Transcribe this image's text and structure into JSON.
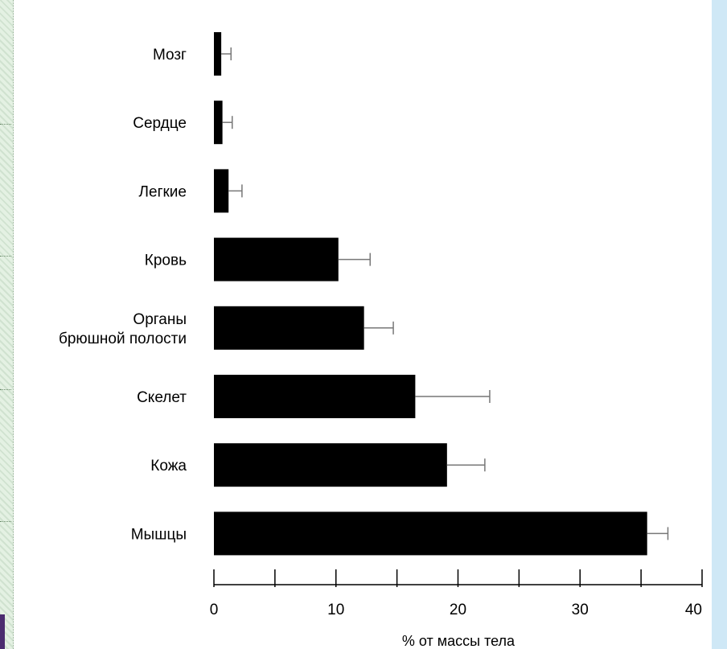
{
  "chart_data": {
    "type": "bar",
    "orientation": "horizontal",
    "categories": [
      "Мозг",
      "Сердце",
      "Легкие",
      "Кровь",
      [
        "Органы",
        "брюшной полости"
      ],
      "Скелет",
      "Кожа",
      "Мышцы"
    ],
    "values": [
      0.6,
      0.7,
      1.2,
      10.2,
      12.3,
      16.5,
      19.1,
      35.5
    ],
    "error_upper": [
      1.4,
      1.5,
      2.3,
      12.8,
      14.7,
      22.6,
      22.2,
      37.2
    ],
    "xlabel": "% от массы тела",
    "xlim": [
      0,
      40
    ],
    "major_ticks": [
      0,
      10,
      20,
      30,
      40
    ],
    "minor_ticks": [
      5,
      15,
      25,
      35
    ],
    "grid": false,
    "bar_color": "#000000",
    "error_bar_color": "#777777"
  }
}
